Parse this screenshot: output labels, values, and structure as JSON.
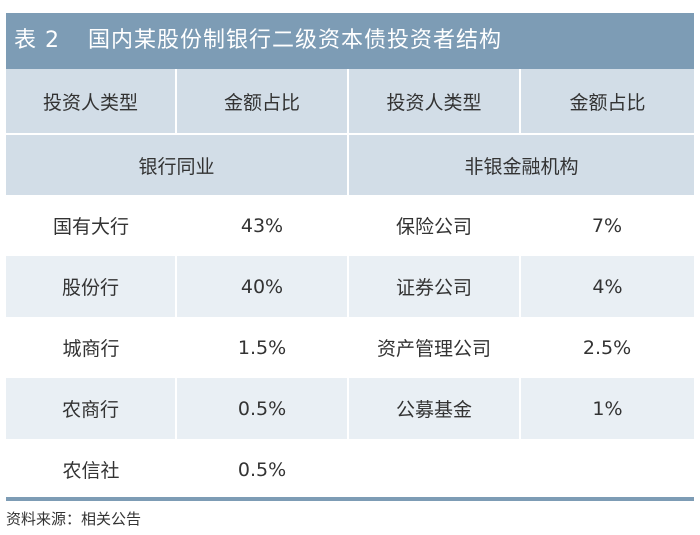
{
  "table": {
    "number": "表 2",
    "title": "国内某股份制银行二级资本债投资者结构",
    "headers": [
      "投资人类型",
      "金额占比",
      "投资人类型",
      "金额占比"
    ],
    "groups": [
      "银行同业",
      "非银金融机构"
    ],
    "rows": [
      {
        "left_type": "国有大行",
        "left_pct": "43%",
        "right_type": "保险公司",
        "right_pct": "7%"
      },
      {
        "left_type": "股份行",
        "left_pct": "40%",
        "right_type": "证券公司",
        "right_pct": "4%"
      },
      {
        "left_type": "城商行",
        "left_pct": "1.5%",
        "right_type": "资产管理公司",
        "right_pct": "2.5%"
      },
      {
        "left_type": "农商行",
        "left_pct": "0.5%",
        "right_type": "公募基金",
        "right_pct": "1%"
      },
      {
        "left_type": "农信社",
        "left_pct": "0.5%",
        "right_type": "",
        "right_pct": ""
      }
    ]
  },
  "source": "资料来源：相关公告",
  "colors": {
    "title_bg": "#7d9cb5",
    "header_bg": "#d2dde7",
    "shade_bg": "#e9eff4"
  }
}
